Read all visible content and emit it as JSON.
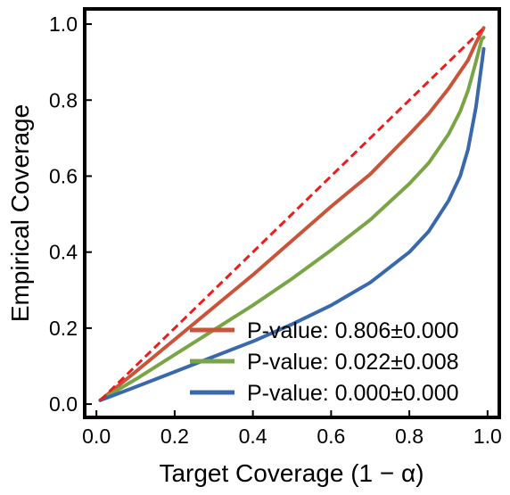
{
  "chart_data": {
    "type": "line",
    "xlabel": "Target Coverage (1 − α)",
    "ylabel": "Empirical Coverage",
    "xlim": [
      -0.03,
      1.03
    ],
    "ylim": [
      -0.035,
      1.04
    ],
    "xticks": [
      "0.0",
      "0.2",
      "0.4",
      "0.6",
      "0.8",
      "1.0"
    ],
    "yticks": [
      "0.0",
      "0.2",
      "0.4",
      "0.6",
      "0.8",
      "1.0"
    ],
    "grid": false,
    "legend_position": "bottom-right",
    "reference_line": {
      "x": [
        0.01,
        0.99
      ],
      "y": [
        0.01,
        0.99
      ],
      "color": "#ee1c1c",
      "style": "dashed"
    },
    "series": [
      {
        "name": "P-value: 0.806±0.000",
        "color": "#c8553a",
        "x": [
          0.01,
          0.1,
          0.2,
          0.3,
          0.4,
          0.5,
          0.6,
          0.7,
          0.8,
          0.85,
          0.9,
          0.95,
          0.97,
          0.99
        ],
        "y": [
          0.01,
          0.085,
          0.17,
          0.255,
          0.34,
          0.43,
          0.52,
          0.605,
          0.71,
          0.765,
          0.83,
          0.905,
          0.95,
          0.99
        ]
      },
      {
        "name": "P-value: 0.022±0.008",
        "color": "#7aa547",
        "x": [
          0.01,
          0.1,
          0.2,
          0.3,
          0.4,
          0.5,
          0.6,
          0.7,
          0.8,
          0.85,
          0.9,
          0.93,
          0.95,
          0.97,
          0.985,
          0.99
        ],
        "y": [
          0.01,
          0.065,
          0.13,
          0.195,
          0.26,
          0.33,
          0.405,
          0.485,
          0.58,
          0.635,
          0.71,
          0.77,
          0.825,
          0.9,
          0.96,
          0.965
        ]
      },
      {
        "name": "P-value: 0.000±0.000",
        "color": "#3a68ad",
        "x": [
          0.01,
          0.1,
          0.2,
          0.3,
          0.4,
          0.5,
          0.6,
          0.7,
          0.8,
          0.85,
          0.9,
          0.93,
          0.95,
          0.97,
          0.985,
          0.99
        ],
        "y": [
          0.01,
          0.045,
          0.085,
          0.125,
          0.165,
          0.21,
          0.26,
          0.32,
          0.4,
          0.455,
          0.535,
          0.6,
          0.67,
          0.78,
          0.895,
          0.935
        ]
      }
    ]
  }
}
